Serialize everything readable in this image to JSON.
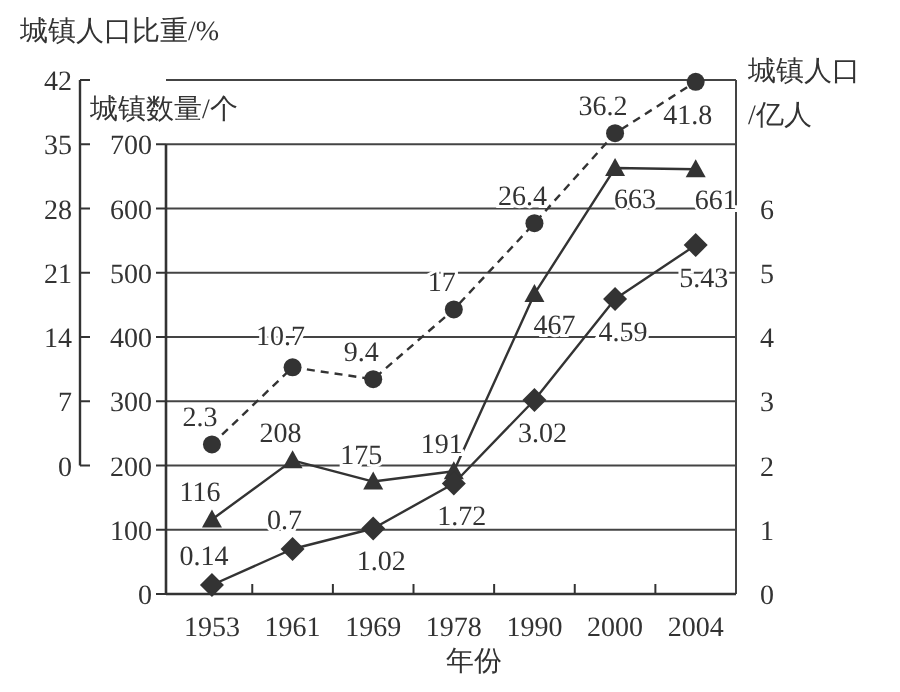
{
  "chart_data": {
    "type": "line",
    "xlabel": "年份",
    "ylabel": "城镇数量/个",
    "y2label": "城镇人口/亿人",
    "y3label": "城镇人口比重/%",
    "categories": [
      "1953",
      "1961",
      "1969",
      "1978",
      "1990",
      "2000",
      "2004"
    ],
    "ylim": [
      0,
      800
    ],
    "yticks": [
      0,
      100,
      200,
      300,
      400,
      500,
      600,
      700
    ],
    "y2lim": [
      0,
      8
    ],
    "y2ticks": [
      0,
      1,
      2,
      3,
      4,
      5,
      6
    ],
    "y3lim": [
      0,
      42
    ],
    "y3ticks": [
      0,
      7,
      14,
      21,
      28,
      35,
      42
    ],
    "grid": "y",
    "data_labels": true,
    "series": [
      {
        "axis": "y3",
        "color": "#333333",
        "marker": "circle",
        "line_style": "dashed",
        "values": [
          2.3,
          10.7,
          9.4,
          17,
          26.4,
          36.2,
          41.8
        ]
      },
      {
        "axis": "y",
        "color": "#333333",
        "marker": "triangle",
        "line_style": "solid",
        "values": [
          116,
          208,
          175,
          191,
          467,
          663,
          661
        ]
      },
      {
        "axis": "y2",
        "color": "#333333",
        "marker": "diamond",
        "line_style": "solid",
        "values": [
          0.14,
          0.7,
          1.02,
          1.72,
          3.02,
          4.59,
          5.43
        ]
      }
    ]
  }
}
